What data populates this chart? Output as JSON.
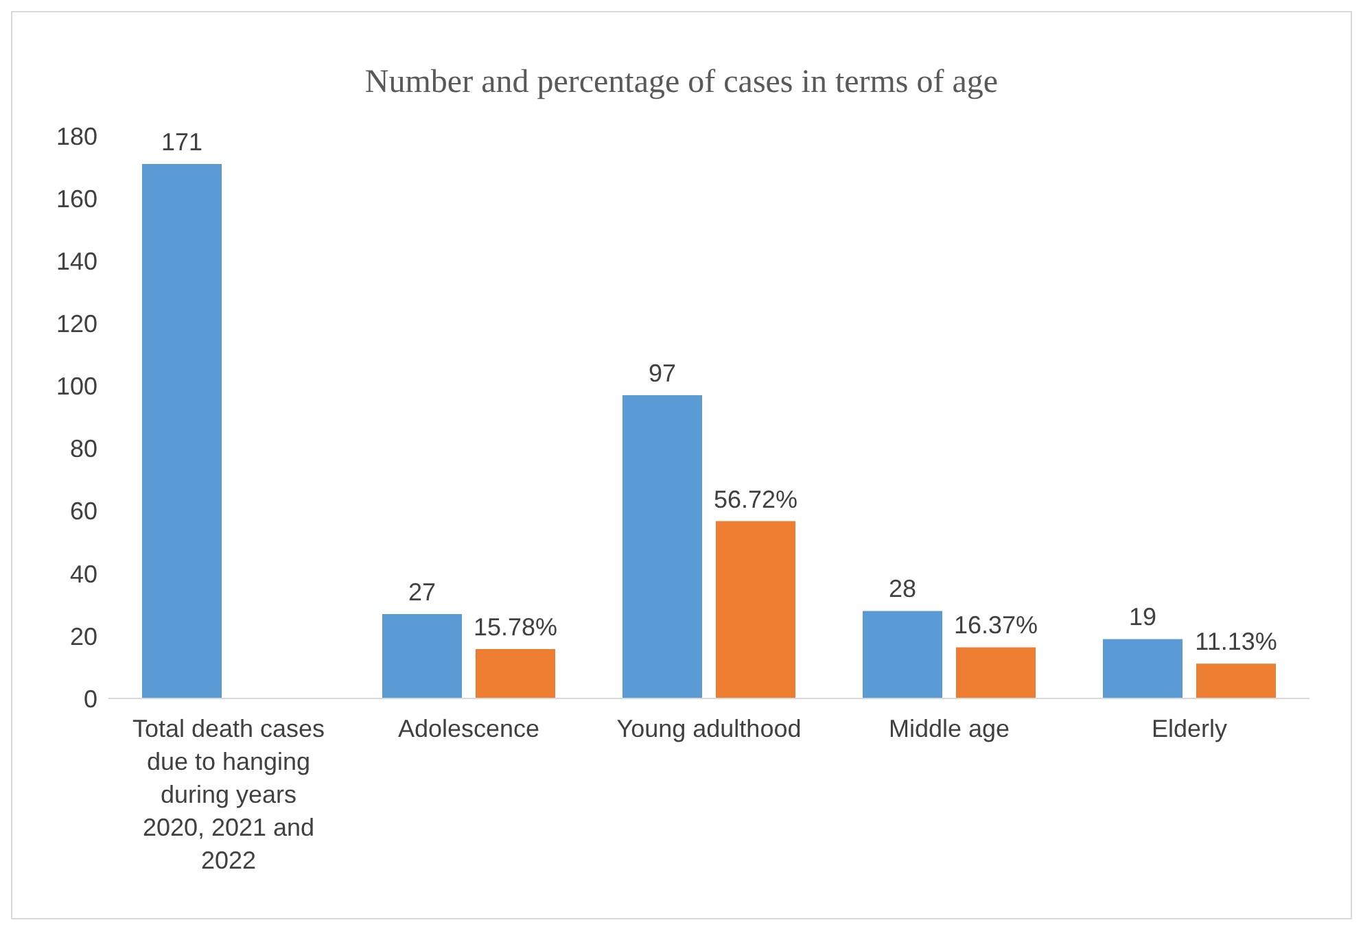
{
  "chart_data": {
    "type": "bar",
    "title": "Number and percentage of cases in terms of age",
    "categories": [
      "Total death cases due to hanging during years 2020, 2021 and 2022",
      "Adolescence",
      "Young adulthood",
      "Middle age",
      "Elderly"
    ],
    "series": [
      {
        "color": "#5b9bd5",
        "values": [
          171,
          27,
          97,
          28,
          19
        ],
        "value_labels": [
          "171",
          "27",
          "97",
          "28",
          "19"
        ]
      },
      {
        "color": "#ed7d31",
        "values": [
          null,
          15.78,
          56.72,
          16.37,
          11.13
        ],
        "value_labels": [
          null,
          "15.78%",
          "56.72%",
          "16.37%",
          "11.13%"
        ]
      }
    ],
    "ylim": [
      0,
      180
    ],
    "yticks": [
      0,
      20,
      40,
      60,
      80,
      100,
      120,
      140,
      160,
      180
    ],
    "grid": false,
    "legend": false
  }
}
